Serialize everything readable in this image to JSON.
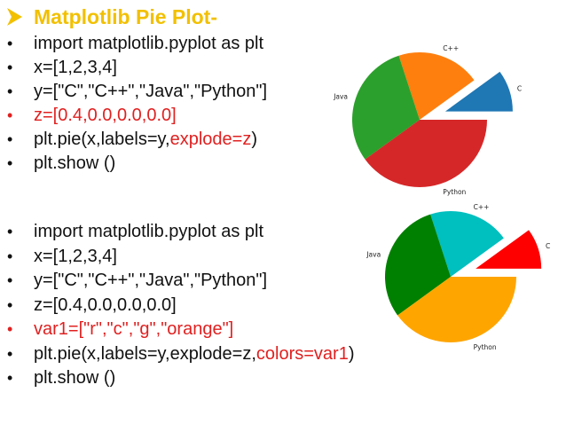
{
  "title": "Matplotlib Pie Plot-",
  "code_block_1": [
    {
      "segs": [
        {
          "t": "import matplotlib.pyplot as plt"
        }
      ]
    },
    {
      "segs": [
        {
          "t": "x=[1,2,3,4]"
        }
      ]
    },
    {
      "segs": [
        {
          "t": "y=[\"C\",\"C++\",\"Java\",\"Python\"]"
        }
      ]
    },
    {
      "red": true,
      "segs": [
        {
          "t": "z=["
        },
        {
          "t": "0.4",
          "hl": "blue"
        },
        {
          "t": ",0.0,0.0,0.0]"
        }
      ]
    },
    {
      "segs": [
        {
          "t": "plt.pie(x,labels=y,"
        },
        {
          "t": "explode=z",
          "hl": "red"
        },
        {
          "t": ")"
        }
      ]
    },
    {
      "segs": [
        {
          "t": "plt.show ()"
        }
      ]
    }
  ],
  "code_block_2": [
    {
      "segs": [
        {
          "t": "import matplotlib.pyplot as plt"
        }
      ]
    },
    {
      "segs": [
        {
          "t": "x=[1,2,3,4]"
        }
      ]
    },
    {
      "segs": [
        {
          "t": "y=[\"C\",\"C++\",\"Java\",\"Python\"]"
        }
      ]
    },
    {
      "segs": [
        {
          "t": "z=[0.4,0.0,0.0,0.0]"
        }
      ]
    },
    {
      "red": true,
      "segs": [
        {
          "t": "var1=[\"r\",\"c\",\"g\",\"orange\"]"
        }
      ]
    },
    {
      "segs": [
        {
          "t": "plt.pie(x,labels=y,explode=z,"
        },
        {
          "t": "colors=var1",
          "hl": "red"
        },
        {
          "t": ")"
        }
      ]
    },
    {
      "segs": [
        {
          "t": "plt.show ()"
        }
      ]
    }
  ],
  "chart_data": [
    {
      "type": "pie",
      "labels": [
        "C",
        "C++",
        "Java",
        "Python"
      ],
      "values": [
        1,
        2,
        3,
        4
      ],
      "explode": [
        0.4,
        0.0,
        0.0,
        0.0
      ],
      "colors": [
        "#1f77b4",
        "#ff7f0e",
        "#2ca02c",
        "#d62728"
      ]
    },
    {
      "type": "pie",
      "labels": [
        "C",
        "C++",
        "Java",
        "Python"
      ],
      "values": [
        1,
        2,
        3,
        4
      ],
      "explode": [
        0.4,
        0.0,
        0.0,
        0.0
      ],
      "colors": [
        "#ff0000",
        "#00bfbf",
        "#008000",
        "#ffa500"
      ]
    }
  ]
}
